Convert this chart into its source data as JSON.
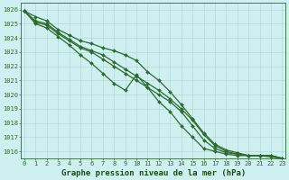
{
  "title": "Graphe pression niveau de la mer (hPa)",
  "xlabel_hours": [
    0,
    1,
    2,
    3,
    4,
    5,
    6,
    7,
    8,
    9,
    10,
    11,
    12,
    13,
    14,
    15,
    16,
    17,
    18,
    19,
    20,
    21,
    22,
    23
  ],
  "series": [
    {
      "label": "line_bottom",
      "color": "#2d6a2d",
      "linewidth": 0.9,
      "marker": "D",
      "markersize": 2.0,
      "values": [
        1025.9,
        1025.0,
        1024.7,
        1024.1,
        1023.5,
        1022.8,
        1022.2,
        1021.5,
        1020.8,
        1020.3,
        1021.4,
        1020.5,
        1019.5,
        1018.8,
        1017.8,
        1017.0,
        1016.2,
        1016.0,
        1015.8,
        1015.7,
        1015.7,
        1015.7,
        1015.6,
        1015.5
      ]
    },
    {
      "label": "line_mid1",
      "color": "#2d6a2d",
      "linewidth": 0.9,
      "marker": "D",
      "markersize": 2.0,
      "values": [
        1025.9,
        1025.1,
        1024.9,
        1024.3,
        1023.8,
        1023.3,
        1023.0,
        1022.5,
        1022.0,
        1021.5,
        1021.0,
        1020.5,
        1020.0,
        1019.5,
        1018.8,
        1017.8,
        1016.8,
        1016.2,
        1015.9,
        1015.8,
        1015.7,
        1015.7,
        1015.7,
        1015.5
      ]
    },
    {
      "label": "line_mid2",
      "color": "#2d6a2d",
      "linewidth": 0.9,
      "marker": "D",
      "markersize": 2.0,
      "values": [
        1025.9,
        1025.2,
        1025.0,
        1024.4,
        1023.9,
        1023.4,
        1023.1,
        1022.8,
        1022.3,
        1021.8,
        1021.3,
        1020.8,
        1020.3,
        1019.7,
        1019.0,
        1018.2,
        1017.2,
        1016.4,
        1016.0,
        1015.8,
        1015.7,
        1015.7,
        1015.7,
        1015.5
      ]
    },
    {
      "label": "line_top",
      "color": "#2d6a2d",
      "linewidth": 0.9,
      "marker": "D",
      "markersize": 2.0,
      "values": [
        1025.9,
        1025.5,
        1025.2,
        1024.6,
        1024.2,
        1023.8,
        1023.6,
        1023.3,
        1023.1,
        1022.8,
        1022.4,
        1021.6,
        1021.0,
        1020.2,
        1019.3,
        1018.3,
        1017.3,
        1016.5,
        1016.1,
        1015.9,
        1015.7,
        1015.7,
        1015.7,
        1015.5
      ]
    }
  ],
  "ylim": [
    1015.5,
    1026.5
  ],
  "yticks": [
    1016,
    1017,
    1018,
    1019,
    1020,
    1021,
    1022,
    1023,
    1024,
    1025,
    1026
  ],
  "bg_color": "#cff0f0",
  "grid_color": "#aad4d4",
  "text_color": "#2d6a2d",
  "axis_color": "#2d6a2d",
  "label_color": "#1a4d1a",
  "title_fontsize": 6.5,
  "tick_fontsize": 5.0,
  "xlim": [
    -0.3,
    23.3
  ]
}
